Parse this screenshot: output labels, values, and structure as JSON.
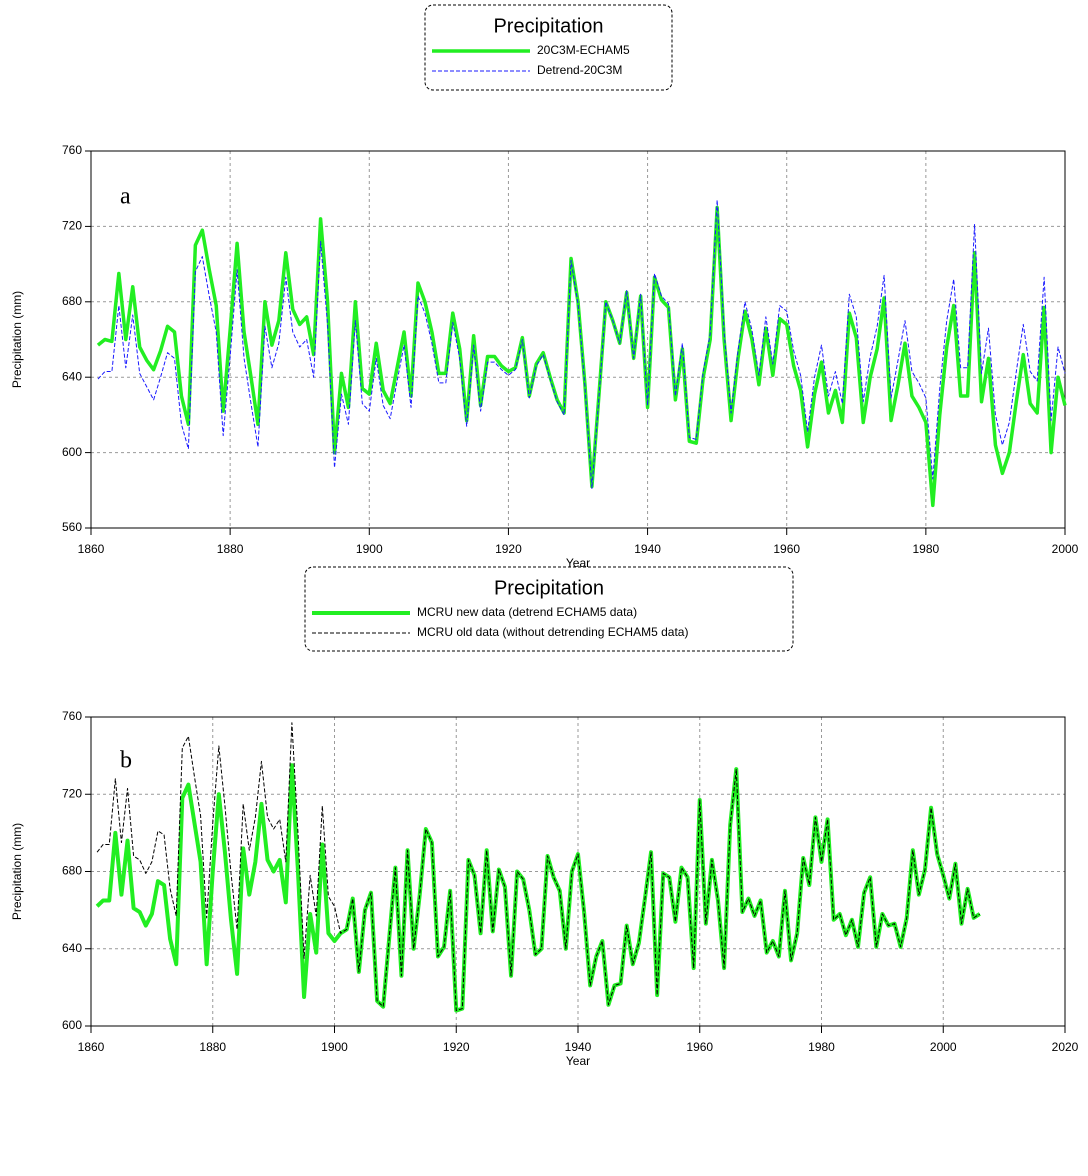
{
  "chart_data": [
    {
      "type": "line",
      "legend_title": "Precipitation",
      "annotation": "a",
      "xlabel": "Year",
      "ylabel": "Precipitation (mm)",
      "xlim": [
        1860,
        2000
      ],
      "xticks": [
        1860,
        1880,
        1900,
        1920,
        1940,
        1960,
        1980,
        2000
      ],
      "ylim": [
        560,
        760
      ],
      "yticks": [
        560,
        600,
        640,
        680,
        720,
        760
      ],
      "grid": true,
      "legend": "top",
      "x": [
        1861,
        1862,
        1863,
        1864,
        1865,
        1866,
        1867,
        1868,
        1869,
        1870,
        1871,
        1872,
        1873,
        1874,
        1875,
        1876,
        1877,
        1878,
        1879,
        1880,
        1881,
        1882,
        1883,
        1884,
        1885,
        1886,
        1887,
        1888,
        1889,
        1890,
        1891,
        1892,
        1893,
        1894,
        1895,
        1896,
        1897,
        1898,
        1899,
        1900,
        1901,
        1902,
        1903,
        1904,
        1905,
        1906,
        1907,
        1908,
        1909,
        1910,
        1911,
        1912,
        1913,
        1914,
        1915,
        1916,
        1917,
        1918,
        1919,
        1920,
        1921,
        1922,
        1923,
        1924,
        1925,
        1926,
        1927,
        1928,
        1929,
        1930,
        1931,
        1932,
        1933,
        1934,
        1935,
        1936,
        1937,
        1938,
        1939,
        1940,
        1941,
        1942,
        1943,
        1944,
        1945,
        1946,
        1947,
        1948,
        1949,
        1950,
        1951,
        1952,
        1953,
        1954,
        1955,
        1956,
        1957,
        1958,
        1959,
        1960,
        1961,
        1962,
        1963,
        1964,
        1965,
        1966,
        1967,
        1968,
        1969,
        1970,
        1971,
        1972,
        1973,
        1974,
        1975,
        1976,
        1977,
        1978,
        1979,
        1980,
        1981,
        1982,
        1983,
        1984,
        1985,
        1986,
        1987,
        1988,
        1989,
        1990,
        1991,
        1992,
        1993,
        1994,
        1995,
        1996,
        1997,
        1998,
        1999,
        2000
      ],
      "series": [
        {
          "name": "20C3M-ECHAM5",
          "color": "#22ee22",
          "line_style": "solid",
          "line_width": 3.5,
          "values": [
            657,
            660,
            659,
            695,
            660,
            688,
            656,
            649,
            644,
            654,
            667,
            664,
            630,
            615,
            710,
            718,
            697,
            678,
            622,
            665,
            711,
            664,
            640,
            615,
            680,
            657,
            670,
            706,
            676,
            668,
            672,
            652,
            724,
            680,
            600,
            642,
            624,
            680,
            634,
            631,
            658,
            633,
            626,
            645,
            664,
            630,
            690,
            680,
            664,
            642,
            642,
            674,
            655,
            617,
            662,
            625,
            651,
            651,
            646,
            643,
            645,
            661,
            630,
            647,
            653,
            640,
            628,
            621,
            703,
            680,
            636,
            582,
            630,
            680,
            670,
            658,
            685,
            650,
            683,
            624,
            693,
            681,
            677,
            628,
            655,
            606,
            605,
            640,
            660,
            730,
            660,
            617,
            650,
            675,
            660,
            636,
            666,
            641,
            671,
            668,
            646,
            633,
            603,
            631,
            648,
            621,
            633,
            616,
            674,
            661,
            616,
            640,
            655,
            682,
            617,
            636,
            658,
            630,
            624,
            616,
            572,
            620,
            656,
            678,
            630,
            630,
            706,
            627,
            650,
            604,
            589,
            600,
            627,
            652,
            626,
            621,
            677,
            600,
            640,
            625
          ]
        },
        {
          "name": "Detrend-20C3M",
          "color": "#1a1aff",
          "line_style": "dashed",
          "line_width": 1,
          "values": [
            639,
            643,
            643,
            678,
            645,
            673,
            642,
            635,
            628,
            640,
            653,
            650,
            615,
            602,
            696,
            704,
            683,
            664,
            609,
            651,
            697,
            650,
            626,
            603,
            667,
            645,
            658,
            693,
            664,
            656,
            660,
            640,
            712,
            668,
            592,
            631,
            615,
            670,
            626,
            622,
            650,
            625,
            618,
            638,
            657,
            624,
            683,
            674,
            658,
            637,
            637,
            669,
            650,
            614,
            657,
            622,
            648,
            648,
            644,
            641,
            644,
            660,
            629,
            646,
            652,
            639,
            627,
            620,
            702,
            679,
            635,
            581,
            629,
            680,
            670,
            658,
            686,
            650,
            684,
            625,
            695,
            683,
            679,
            630,
            658,
            608,
            607,
            643,
            663,
            734,
            664,
            621,
            654,
            680,
            665,
            641,
            672,
            647,
            678,
            675,
            654,
            641,
            611,
            640,
            657,
            630,
            643,
            626,
            684,
            672,
            627,
            651,
            667,
            694,
            629,
            649,
            670,
            643,
            637,
            629,
            586,
            634,
            670,
            692,
            645,
            645,
            721,
            642,
            666,
            620,
            604,
            616,
            643,
            668,
            643,
            638,
            693,
            617,
            656,
            642
          ]
        }
      ]
    },
    {
      "type": "line",
      "legend_title": "Precipitation",
      "annotation": "b",
      "xlabel": "Year",
      "ylabel": "Precipitation (mm)",
      "xlim": [
        1860,
        2020
      ],
      "xticks": [
        1860,
        1880,
        1900,
        1920,
        1940,
        1960,
        1980,
        2000,
        2020
      ],
      "ylim": [
        600,
        760
      ],
      "yticks": [
        600,
        640,
        680,
        720,
        760
      ],
      "grid": true,
      "legend": "top",
      "x": [
        1861,
        1862,
        1863,
        1864,
        1865,
        1866,
        1867,
        1868,
        1869,
        1870,
        1871,
        1872,
        1873,
        1874,
        1875,
        1876,
        1877,
        1878,
        1879,
        1880,
        1881,
        1882,
        1883,
        1884,
        1885,
        1886,
        1887,
        1888,
        1889,
        1890,
        1891,
        1892,
        1893,
        1894,
        1895,
        1896,
        1897,
        1898,
        1899,
        1900,
        1901,
        1902,
        1903,
        1904,
        1905,
        1906,
        1907,
        1908,
        1909,
        1910,
        1911,
        1912,
        1913,
        1914,
        1915,
        1916,
        1917,
        1918,
        1919,
        1920,
        1921,
        1922,
        1923,
        1924,
        1925,
        1926,
        1927,
        1928,
        1929,
        1930,
        1931,
        1932,
        1933,
        1934,
        1935,
        1936,
        1937,
        1938,
        1939,
        1940,
        1941,
        1942,
        1943,
        1944,
        1945,
        1946,
        1947,
        1948,
        1949,
        1950,
        1951,
        1952,
        1953,
        1954,
        1955,
        1956,
        1957,
        1958,
        1959,
        1960,
        1961,
        1962,
        1963,
        1964,
        1965,
        1966,
        1967,
        1968,
        1969,
        1970,
        1971,
        1972,
        1973,
        1974,
        1975,
        1976,
        1977,
        1978,
        1979,
        1980,
        1981,
        1982,
        1983,
        1984,
        1985,
        1986,
        1987,
        1988,
        1989,
        1990,
        1991,
        1992,
        1993,
        1994,
        1995,
        1996,
        1997,
        1998,
        1999,
        2000,
        2001,
        2002,
        2003,
        2004,
        2005,
        2006
      ],
      "series": [
        {
          "name": "MCRU new data (detrend ECHAM5 data)",
          "color": "#22ee22",
          "line_style": "solid",
          "line_width": 4,
          "values": [
            662,
            665,
            665,
            700,
            668,
            696,
            661,
            659,
            652,
            658,
            675,
            673,
            645,
            632,
            718,
            725,
            705,
            685,
            632,
            680,
            720,
            690,
            655,
            627,
            692,
            668,
            685,
            715,
            686,
            680,
            686,
            664,
            735,
            680,
            615,
            658,
            638,
            694,
            648,
            644,
            648,
            650,
            666,
            628,
            660,
            669,
            613,
            610,
            646,
            682,
            626,
            691,
            640,
            668,
            702,
            695,
            636,
            641,
            670,
            608,
            609,
            686,
            678,
            648,
            691,
            649,
            681,
            672,
            626,
            680,
            676,
            660,
            637,
            640,
            688,
            677,
            670,
            640,
            680,
            689,
            659,
            621,
            636,
            644,
            611,
            621,
            622,
            652,
            632,
            643,
            666,
            690,
            616,
            679,
            677,
            654,
            682,
            677,
            630,
            717,
            653,
            686,
            665,
            630,
            704,
            733,
            659,
            666,
            657,
            665,
            638,
            644,
            636,
            670,
            634,
            648,
            687,
            673,
            708,
            685,
            707,
            655,
            658,
            647,
            655,
            641,
            669,
            677,
            641,
            658,
            652,
            653,
            641,
            656,
            691,
            668,
            681,
            713,
            689,
            678,
            666,
            684,
            653,
            671,
            656,
            658
          ]
        },
        {
          "name": "MCRU old data (without detrending ECHAM5 data)",
          "color": "#000000",
          "line_style": "dashed",
          "line_width": 1,
          "values": [
            690,
            694,
            694,
            728,
            695,
            723,
            688,
            686,
            679,
            685,
            701,
            699,
            671,
            657,
            744,
            750,
            729,
            709,
            656,
            705,
            745,
            714,
            679,
            650,
            715,
            691,
            708,
            737,
            708,
            702,
            707,
            685,
            757,
            700,
            635,
            678,
            657,
            714,
            667,
            662,
            648,
            650,
            666,
            628,
            660,
            669,
            613,
            610,
            646,
            682,
            626,
            691,
            640,
            668,
            702,
            695,
            636,
            641,
            670,
            608,
            609,
            686,
            678,
            648,
            691,
            649,
            681,
            672,
            626,
            680,
            676,
            660,
            637,
            640,
            688,
            677,
            670,
            640,
            680,
            689,
            659,
            621,
            636,
            644,
            611,
            621,
            622,
            652,
            632,
            643,
            666,
            690,
            616,
            679,
            677,
            654,
            682,
            677,
            630,
            717,
            653,
            686,
            665,
            630,
            704,
            733,
            659,
            666,
            657,
            665,
            638,
            644,
            636,
            670,
            634,
            648,
            687,
            673,
            708,
            685,
            707,
            655,
            658,
            647,
            655,
            641,
            669,
            677,
            641,
            658,
            652,
            653,
            641,
            656,
            691,
            668,
            681,
            713,
            689,
            678,
            666,
            684,
            653,
            671,
            656,
            658
          ]
        }
      ]
    }
  ]
}
